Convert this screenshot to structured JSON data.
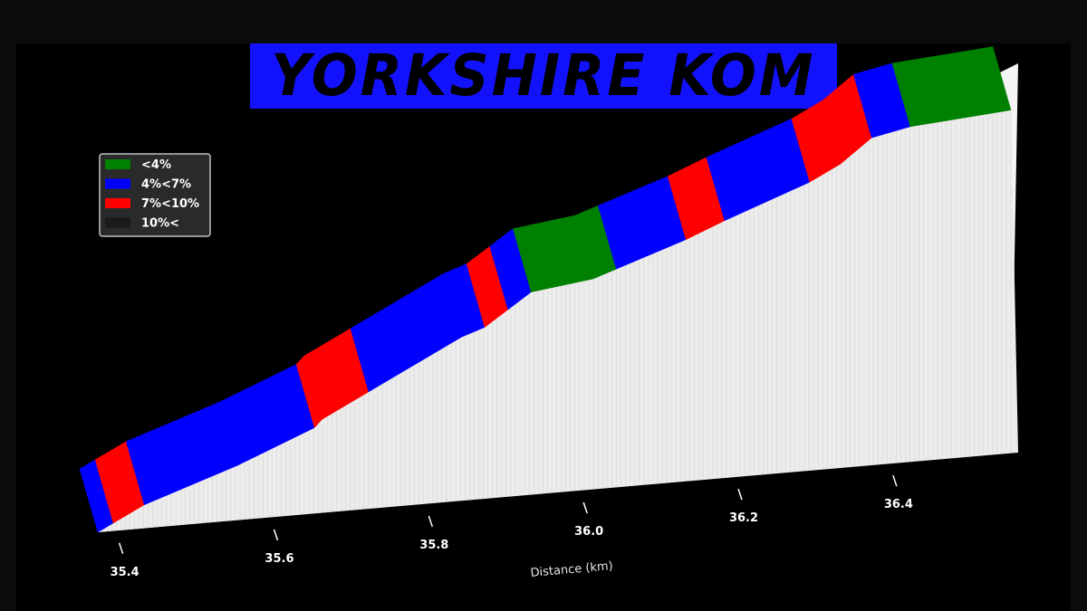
{
  "title": "YORKSHIRE KOM",
  "colors": {
    "low": "#008000",
    "mid": "#0000ff",
    "high": "#ff0000",
    "steep": "#1a1a1a",
    "title_bg": "#1212ff",
    "background": "#000000"
  },
  "chart_data": {
    "type": "area",
    "title": "",
    "xlabel": "Distance (km)",
    "ylabel": "",
    "xlim": [
      35.37,
      36.55
    ],
    "ylim": [
      0,
      45
    ],
    "grid": false,
    "legend_position": "top-left",
    "legend": [
      {
        "label": "<4%",
        "color": "#008000"
      },
      {
        "label": "4%<7%",
        "color": "#0000ff"
      },
      {
        "label": "7%<10%",
        "color": "#ff0000"
      },
      {
        "label": "10%<",
        "color": "#1a1a1a"
      }
    ],
    "x_ticks": [
      "35.4",
      "35.6",
      "35.8",
      "36.0",
      "36.2",
      "36.4"
    ],
    "distance_km": [
      35.37,
      35.39,
      35.43,
      35.55,
      35.6,
      35.65,
      35.66,
      35.72,
      35.84,
      35.87,
      35.9,
      35.93,
      36.01,
      36.04,
      36.13,
      36.18,
      36.29,
      36.33,
      36.37,
      36.42,
      36.55
    ],
    "elevation_m": [
      0.0,
      1.0,
      3.0,
      7.0,
      9.0,
      11.0,
      12.0,
      15.0,
      21.0,
      22.0,
      24.0,
      26.0,
      27.0,
      28.0,
      31.0,
      33.0,
      37.0,
      39.0,
      42.0,
      43.0,
      44.0
    ],
    "gradient_class": [
      "4%<7%",
      "7%<10%",
      "4%<7%",
      "4%<7%",
      "4%<7%",
      "7%<10%",
      "7%<10%",
      "4%<7%",
      "4%<7%",
      "7%<10%",
      "4%<7%",
      "<4%",
      "<4%",
      "4%<7%",
      "7%<10%",
      "4%<7%",
      "7%<10%",
      "7%<10%",
      "4%<7%",
      "<4%"
    ]
  }
}
